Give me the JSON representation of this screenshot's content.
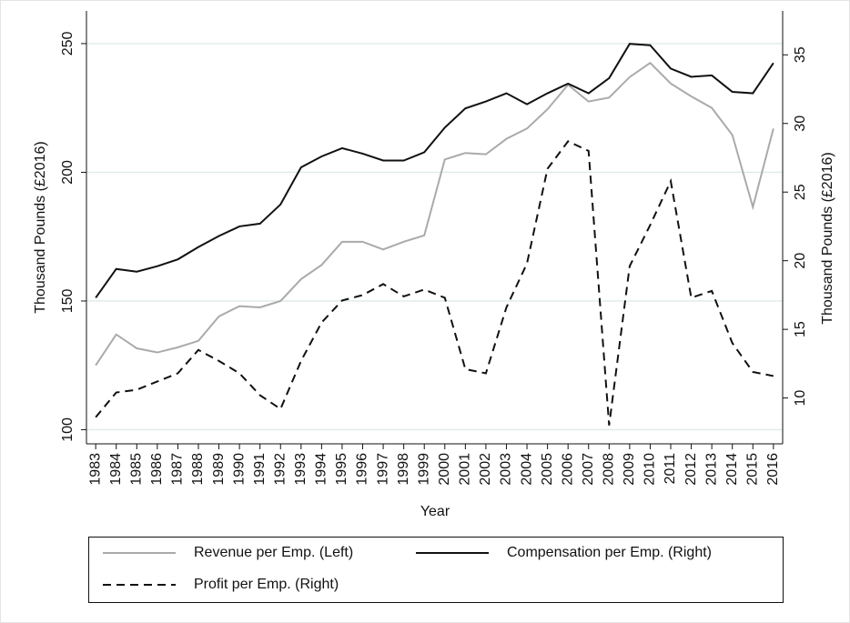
{
  "chart_data": {
    "type": "line",
    "x_label": "Year",
    "y_label": "Thousand Pounds (£2016)",
    "y2_label": "Thousand Pounds (£2016)",
    "x": [
      1983,
      1984,
      1985,
      1986,
      1987,
      1988,
      1989,
      1990,
      1991,
      1992,
      1993,
      1994,
      1995,
      1996,
      1997,
      1998,
      1999,
      2000,
      2001,
      2002,
      2003,
      2004,
      2005,
      2006,
      2007,
      2008,
      2009,
      2010,
      2011,
      2012,
      2013,
      2014,
      2015,
      2016
    ],
    "xlim": [
      1982.55,
      2016.45
    ],
    "xticks": [
      1983,
      1984,
      1985,
      1986,
      1987,
      1988,
      1989,
      1990,
      1991,
      1992,
      1993,
      1994,
      1995,
      1996,
      1997,
      1998,
      1999,
      2000,
      2001,
      2002,
      2003,
      2004,
      2005,
      2006,
      2007,
      2008,
      2009,
      2010,
      2011,
      2012,
      2013,
      2014,
      2015,
      2016
    ],
    "ylim": [
      94.5,
      262.7
    ],
    "yticks": [
      100,
      150,
      200,
      250
    ],
    "y2lim": [
      6.66,
      38.2
    ],
    "y2ticks": [
      10,
      15,
      20,
      25,
      30,
      35
    ],
    "grid": true,
    "series": [
      {
        "name": "Revenue per Emp. (Left)",
        "color": "#aaaaaa",
        "style": "solid",
        "axis": "y",
        "values": [
          125,
          137,
          131.6,
          130,
          132,
          134.5,
          144,
          148,
          147.5,
          150,
          158.5,
          164,
          173,
          173,
          170,
          173,
          175.5,
          205,
          207.5,
          207,
          213,
          217,
          224.5,
          234,
          227.5,
          229,
          237,
          242.5,
          234.5,
          229.5,
          225,
          214.5,
          186.5,
          217
        ]
      },
      {
        "name": "Compensation per Emp. (Right)",
        "color": "#111111",
        "style": "solid",
        "axis": "y2",
        "values": [
          17.3,
          19.4,
          19.2,
          19.6,
          20.1,
          21,
          21.8,
          22.5,
          22.7,
          24.1,
          26.8,
          27.6,
          28.2,
          27.8,
          27.3,
          27.3,
          27.9,
          29.7,
          31.1,
          31.6,
          32.2,
          31.4,
          32.2,
          32.9,
          32.2,
          33.3,
          35.8,
          35.7,
          34,
          33.4,
          33.5,
          32.3,
          32.2,
          34.4
        ]
      },
      {
        "name": "Profit per Emp. (Right)",
        "color": "#111111",
        "style": "dashed",
        "axis": "y2",
        "values": [
          8.6,
          10.4,
          10.6,
          11.2,
          11.8,
          13.5,
          12.7,
          11.8,
          10.2,
          9.2,
          12.7,
          15.5,
          17.1,
          17.5,
          18.3,
          17.4,
          17.9,
          17.3,
          12.1,
          11.8,
          16.6,
          19.8,
          26.7,
          28.7,
          28,
          8,
          19.6,
          22.6,
          25.8,
          17.3,
          17.8,
          14,
          11.9,
          11.6
        ]
      }
    ]
  }
}
